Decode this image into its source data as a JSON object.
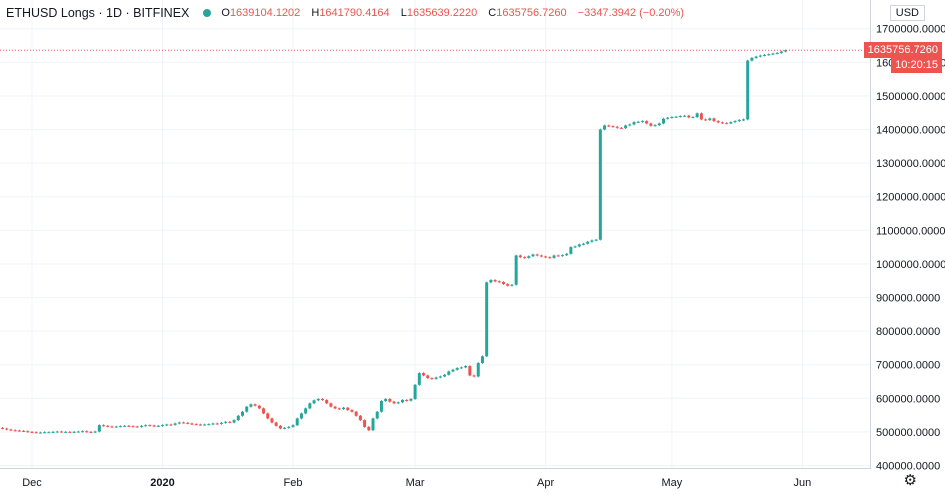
{
  "legend": {
    "symbol": "ETHUSD Longs · 1D · BITFINEX",
    "o_label": "O",
    "o": "1639104.1202",
    "h_label": "H",
    "h": "1641790.4164",
    "l_label": "L",
    "l": "1635639.2220",
    "c_label": "C",
    "c": "1635756.7260",
    "change": "−3347.3942 (−0.20%)"
  },
  "currency": "USD",
  "last_price": "1635756.7260",
  "countdown": "10:20:15",
  "colors": {
    "up": "#26a69a",
    "down": "#ef5350",
    "grid": "#f0f3fa"
  },
  "icons": {
    "settings": "gear-icon"
  },
  "chart_data": {
    "type": "candlestick",
    "x_ticks": [
      "Dec",
      "2020",
      "Feb",
      "Mar",
      "Apr",
      "May",
      "Jun"
    ],
    "y_ticks": [
      "400000.0000",
      "500000.0000",
      "600000.0000",
      "700000.0000",
      "800000.0000",
      "900000.0000",
      "1000000.0000",
      "1100000.0000",
      "1200000.0000",
      "1300000.0000",
      "1400000.0000",
      "1500000.0000",
      "1600000.0000",
      "1700000.0000"
    ],
    "ylim": [
      385000,
      1745000
    ],
    "grid": true,
    "x_start": "2019-11-23",
    "series": [
      {
        "name": "ETHUSD Longs",
        "close": [
          512000,
          510000,
          507000,
          505000,
          504000,
          503000,
          502000,
          500000,
          499000,
          498000,
          498000,
          499000,
          499000,
          500000,
          501000,
          500000,
          500000,
          499000,
          500000,
          501000,
          502000,
          500000,
          499000,
          501000,
          520000,
          518000,
          516000,
          515000,
          516000,
          517000,
          518000,
          517000,
          516000,
          515000,
          518000,
          520000,
          519000,
          517000,
          518000,
          520000,
          522000,
          521000,
          525000,
          528000,
          527000,
          525000,
          523000,
          522000,
          521000,
          522000,
          523000,
          525000,
          524000,
          527000,
          530000,
          528000,
          535000,
          548000,
          560000,
          575000,
          582000,
          578000,
          570000,
          555000,
          540000,
          528000,
          518000,
          510000,
          512000,
          515000,
          520000,
          540000,
          555000,
          570000,
          585000,
          594000,
          598000,
          595000,
          585000,
          575000,
          570000,
          568000,
          572000,
          565000,
          560000,
          548000,
          535000,
          515000,
          505000,
          540000,
          560000,
          592000,
          598000,
          590000,
          585000,
          588000,
          595000,
          593000,
          598000,
          640000,
          675000,
          668000,
          660000,
          658000,
          662000,
          665000,
          670000,
          680000,
          685000,
          690000,
          692000,
          696000,
          668000,
          665000,
          705000,
          725000,
          945000,
          952000,
          948000,
          946000,
          940000,
          935000,
          938000,
          1025000,
          1020000,
          1018000,
          1023000,
          1028000,
          1025000,
          1022000,
          1020000,
          1018000,
          1025000,
          1024000,
          1026000,
          1030000,
          1050000,
          1052000,
          1058000,
          1060000,
          1066000,
          1070000,
          1072000,
          1400000,
          1412000,
          1410000,
          1408000,
          1405000,
          1404000,
          1412000,
          1415000,
          1422000,
          1423000,
          1425000,
          1418000,
          1411000,
          1413000,
          1418000,
          1432000,
          1435000,
          1437000,
          1438000,
          1440000,
          1441000,
          1436000,
          1437000,
          1448000,
          1430000,
          1428000,
          1433000,
          1425000,
          1421000,
          1419000,
          1418000,
          1422000,
          1425000,
          1428000,
          1430000,
          1605000,
          1613000,
          1617000,
          1620000,
          1622000,
          1624000,
          1626000,
          1628000,
          1632000,
          1635757
        ]
      }
    ]
  }
}
